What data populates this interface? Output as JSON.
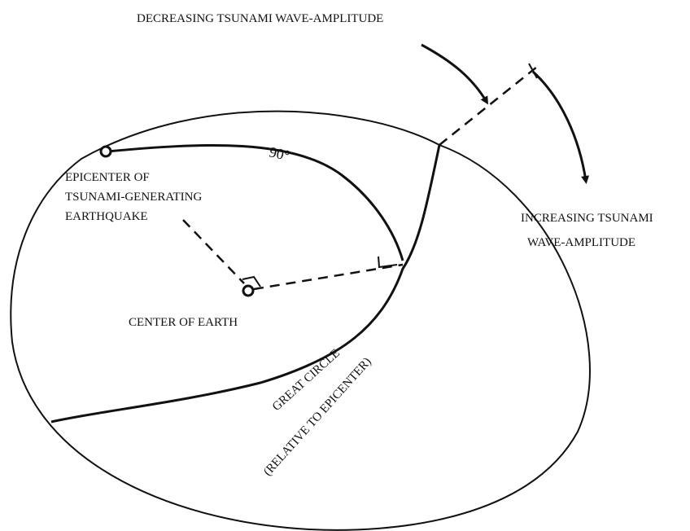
{
  "labels": {
    "decreasing": "DECREASING TSUNAMI WAVE-AMPLITUDE",
    "increasing": [
      "INCREASING TSUNAMI",
      "WAVE-AMPLITUDE"
    ],
    "angle": "90°",
    "epicenter": [
      "EPICENTER OF",
      "TSUNAMI-GENERATING",
      "EARTHQUAKE"
    ],
    "center": "CENTER OF EARTH",
    "great_circle": [
      "GREAT CIRCLE",
      "(RELATIVE TO EPICENTER)"
    ]
  }
}
